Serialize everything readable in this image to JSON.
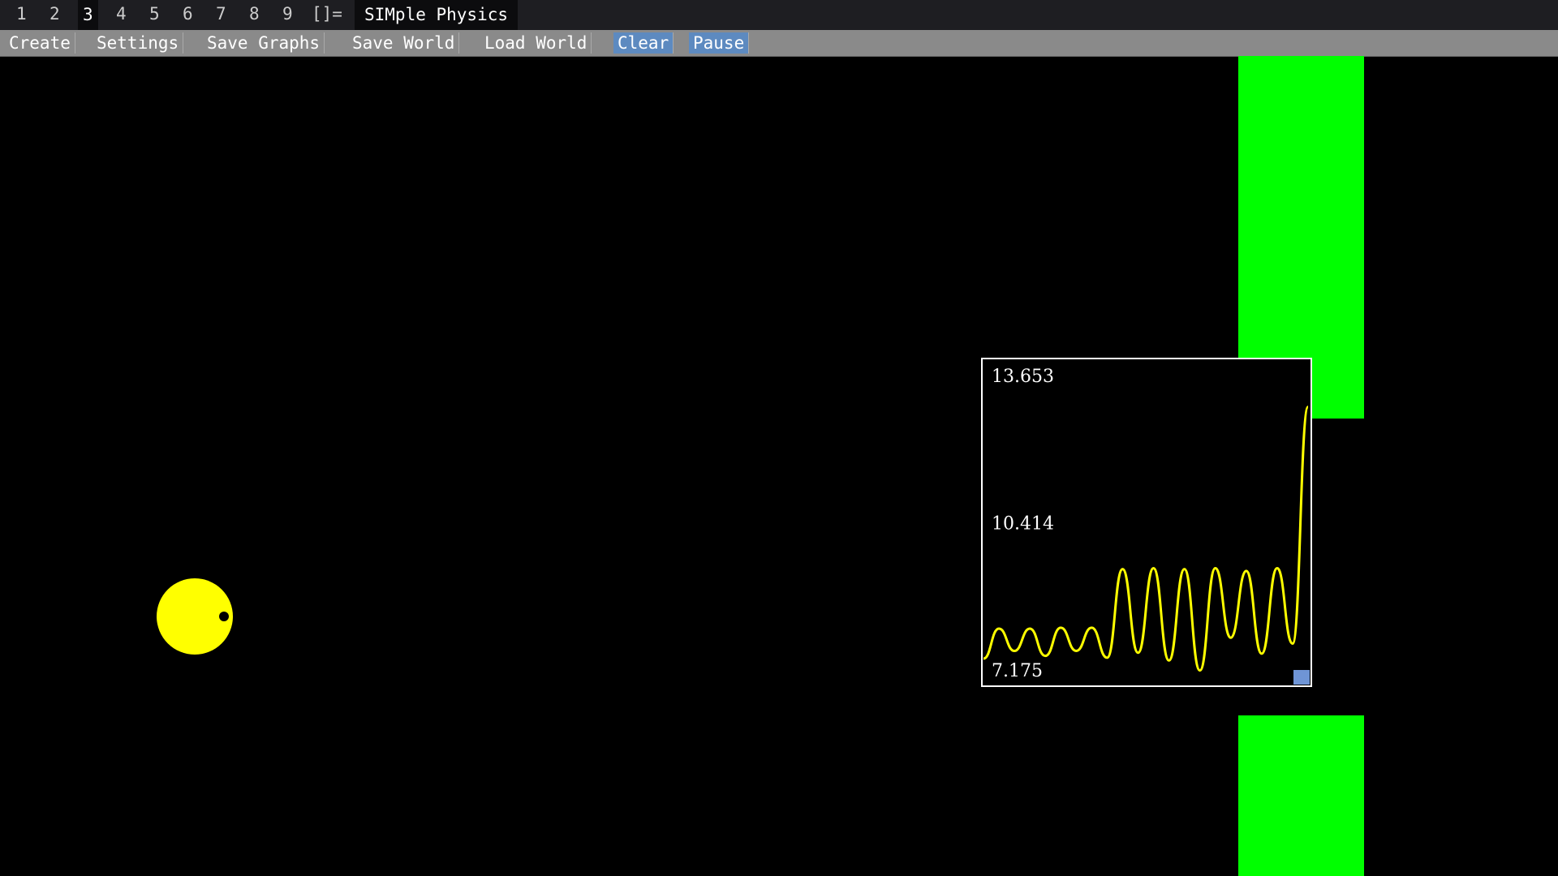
{
  "workspaces": [
    "1",
    "2",
    "3",
    "4",
    "5",
    "6",
    "7",
    "8",
    "9"
  ],
  "layout_symbol": "[]=",
  "window_title": "SIMple Physics",
  "menu": [
    "Create",
    "Settings",
    "Save Graphs",
    "Save World",
    "Load World",
    "Clear",
    "Pause"
  ],
  "graph": {
    "type": "line",
    "color": "#ffff00",
    "yticks": [
      {
        "value": 13.653,
        "label": "13.653"
      },
      {
        "value": 10.414,
        "label": "10.414"
      },
      {
        "value": 7.175,
        "label": "7.175"
      }
    ],
    "ylim": [
      7.175,
      13.653
    ],
    "values": [
      7.46,
      8.12,
      7.63,
      8.12,
      7.52,
      8.14,
      7.63,
      8.14,
      7.48,
      9.43,
      7.59,
      9.45,
      7.42,
      9.43,
      7.2,
      9.45,
      7.92,
      9.39,
      7.57,
      9.45,
      7.79,
      13.0
    ]
  }
}
